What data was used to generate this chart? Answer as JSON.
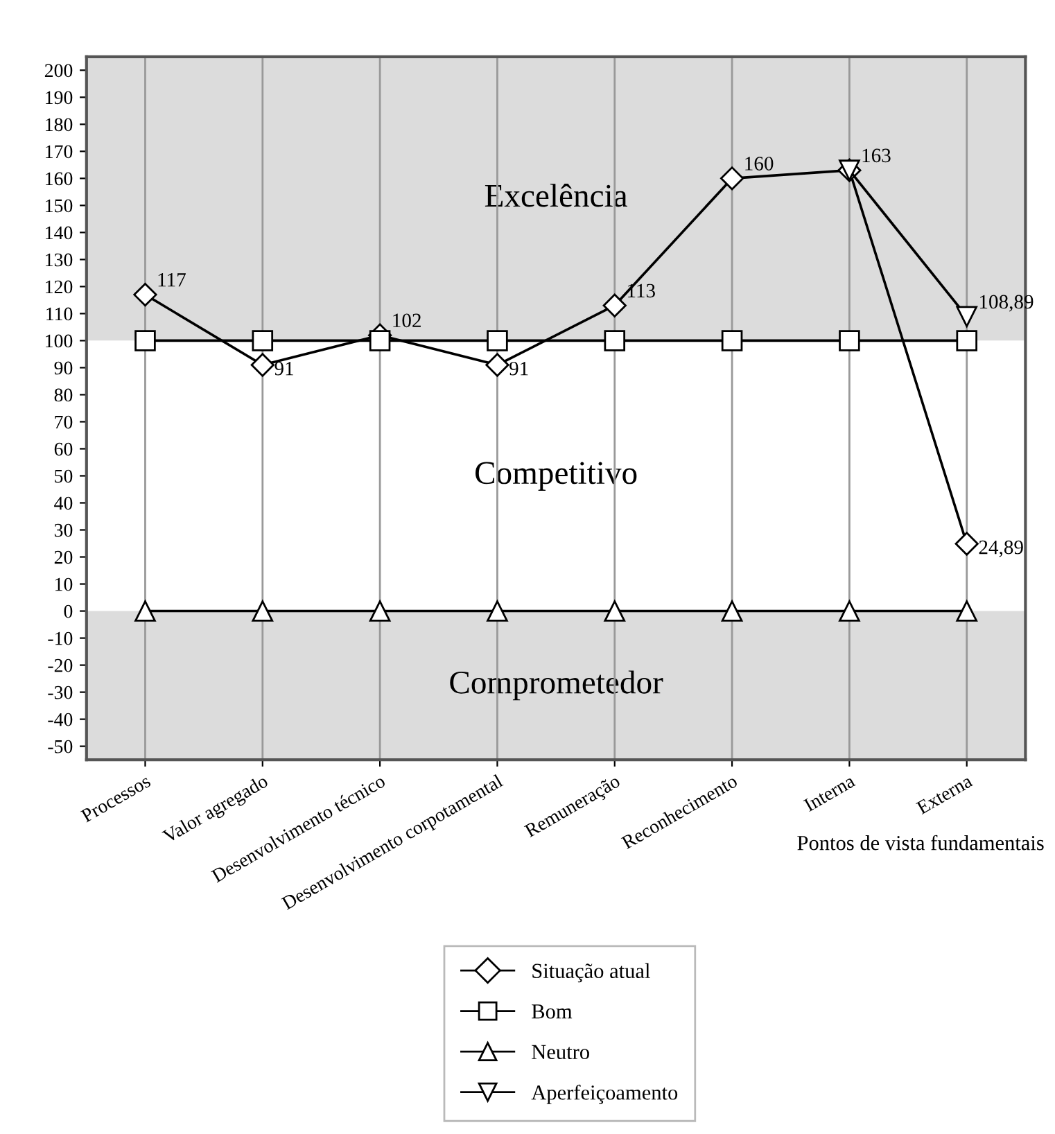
{
  "chart_data": {
    "type": "line",
    "categories": [
      "Processos",
      "Valor agregado",
      "Desenvolvimento técnico",
      "Desenvolvimento corpotamental",
      "Remuneração",
      "Reconhecimento",
      "Interna",
      "Externa"
    ],
    "xlabel": "Pontos de vista fundamentais",
    "series": [
      {
        "name": "Situação atual",
        "color": "#000000",
        "marker": "diamond",
        "values": [
          117,
          91,
          102,
          91,
          113,
          160,
          163,
          24.89
        ],
        "value_labels": [
          "117",
          "91",
          "102",
          "91",
          "113",
          "160",
          "163",
          "24,89"
        ]
      },
      {
        "name": "Bom",
        "color": "#000000",
        "marker": "square",
        "values": [
          100,
          100,
          100,
          100,
          100,
          100,
          100,
          100
        ]
      },
      {
        "name": "Neutro",
        "color": "#000000",
        "marker": "triangle",
        "values": [
          0,
          0,
          0,
          0,
          0,
          0,
          0,
          0
        ]
      },
      {
        "name": "Aperfeiçoamento",
        "color": "#000000",
        "marker": "triangle_down",
        "values": [
          null,
          null,
          null,
          null,
          null,
          null,
          163,
          108.89
        ],
        "value_labels": [
          null,
          null,
          null,
          null,
          null,
          null,
          null,
          "108,89"
        ]
      }
    ],
    "ylim": [
      -55,
      205
    ],
    "yticks": [
      -50,
      -40,
      -30,
      -20,
      -10,
      0,
      10,
      20,
      30,
      40,
      50,
      60,
      70,
      80,
      90,
      100,
      110,
      120,
      130,
      140,
      150,
      160,
      170,
      180,
      190,
      200
    ],
    "bands": [
      {
        "axis": "y",
        "from": 100,
        "to": 205,
        "label": "Excelência",
        "color": "#dcdcdc"
      },
      {
        "axis": "y",
        "from": 0,
        "to": 100,
        "label": "Competitivo",
        "color": "#ffffff"
      },
      {
        "axis": "y",
        "from": -55,
        "to": 0,
        "label": "Comprometedor",
        "color": "#dcdcdc"
      }
    ],
    "grid": "x",
    "legend": "bottom"
  }
}
